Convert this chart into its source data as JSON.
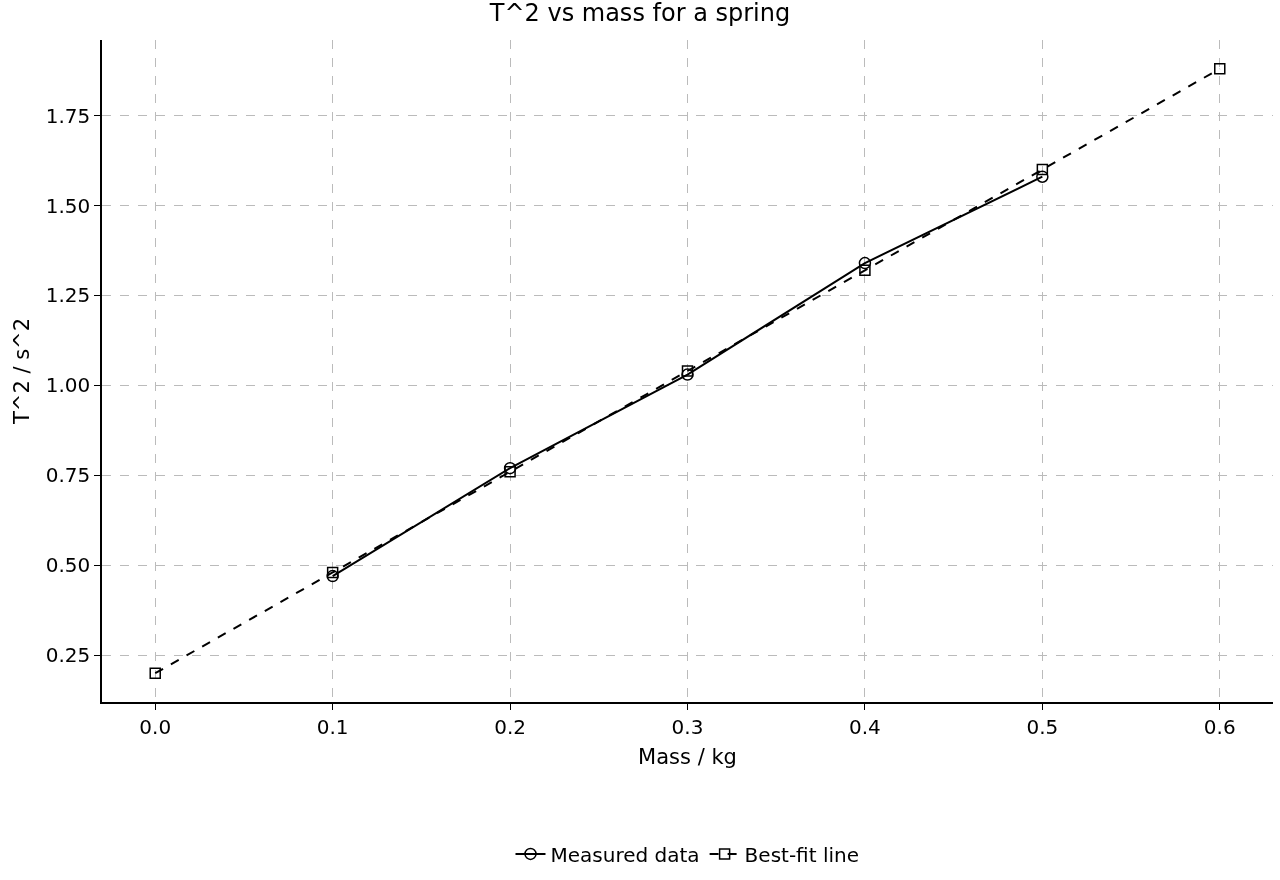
{
  "chart_data": {
    "type": "line",
    "title": "T^2 vs mass for a spring",
    "xlabel": "Mass / kg",
    "ylabel": "T^2 / s^2",
    "xlim": [
      -0.03,
      0.63
    ],
    "ylim": [
      0.12,
      1.96
    ],
    "xticks": [
      {
        "value": 0,
        "label": "0.0"
      },
      0.1,
      0.2,
      0.3,
      0.4,
      0.5,
      0.6
    ],
    "yticks": [
      0.25,
      {
        "value": 0.5,
        "label": "0.50"
      },
      0.75,
      {
        "value": 1,
        "label": "1.00"
      },
      1.25,
      {
        "value": 1.5,
        "label": "1.50"
      },
      1.75
    ],
    "grid": true,
    "legend": "bottom",
    "series": [
      {
        "name": "Measured data",
        "color": "#000000",
        "x": [
          0.1,
          0.2,
          0.3,
          0.4,
          0.5
        ],
        "values": [
          0.47,
          0.77,
          1.03,
          1.34,
          1.58
        ],
        "marker": "circle",
        "line_style": "solid"
      },
      {
        "name": "Best-fit line",
        "color": "#000000",
        "x": [
          0,
          0.1,
          0.2,
          0.3,
          0.4,
          0.5,
          0.6
        ],
        "values": [
          0.2,
          0.48,
          0.76,
          1.04,
          1.32,
          1.6,
          1.88
        ],
        "marker": "square",
        "line_style": "dashed"
      }
    ]
  }
}
